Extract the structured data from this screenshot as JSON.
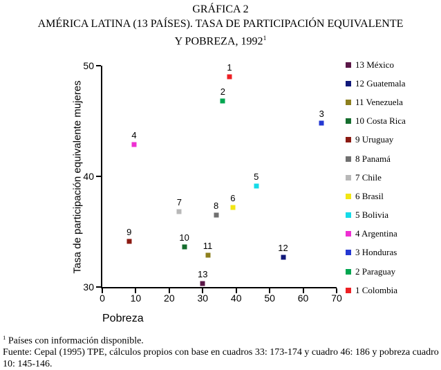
{
  "title": {
    "line1": "GRÁFICA 2",
    "line2": "AMÉRICA LATINA (13 PAÍSES). TASA DE PARTICIPACIÓN EQUIVALENTE",
    "line3": "Y POBREZA, 1992",
    "line3_sup": "1"
  },
  "chart_data": {
    "type": "scatter",
    "title": "GRÁFICA 2. AMÉRICA LATINA (13 PAÍSES). TASA DE PARTICIPACIÓN EQUIVALENTE Y POBREZA, 1992",
    "xlabel": "Pobreza",
    "ylabel": "Tasa de participación equivalente mujeres",
    "xlim": [
      0,
      70
    ],
    "ylim": [
      30,
      50
    ],
    "x_ticks": [
      0,
      10,
      20,
      30,
      40,
      50,
      60,
      70
    ],
    "y_ticks": [
      30,
      40,
      50
    ],
    "grid": false,
    "legend_position": "right",
    "points": [
      {
        "id": "13",
        "country": "México",
        "x": 30,
        "y": 30.3,
        "color": "#5a1747"
      },
      {
        "id": "12",
        "country": "Guatemala",
        "x": 54,
        "y": 32.7,
        "color": "#10187a"
      },
      {
        "id": "11",
        "country": "Venezuela",
        "x": 31.5,
        "y": 32.9,
        "color": "#8d7f1e"
      },
      {
        "id": "10",
        "country": "Costa Rica",
        "x": 24.5,
        "y": 33.6,
        "color": "#156d2d"
      },
      {
        "id": "9",
        "country": "Uruguay",
        "x": 8,
        "y": 34.1,
        "color": "#8b1a12"
      },
      {
        "id": "8",
        "country": "Panamá",
        "x": 34,
        "y": 36.5,
        "color": "#707070"
      },
      {
        "id": "7",
        "country": "Chile",
        "x": 23,
        "y": 36.8,
        "color": "#b8b8b8"
      },
      {
        "id": "6",
        "country": "Brasil",
        "x": 39,
        "y": 37.2,
        "color": "#f2e613"
      },
      {
        "id": "5",
        "country": "Bolivia",
        "x": 46,
        "y": 39.1,
        "color": "#15dbe8"
      },
      {
        "id": "4",
        "country": "Argentina",
        "x": 9.5,
        "y": 42.9,
        "color": "#ee2fd2"
      },
      {
        "id": "3",
        "country": "Honduras",
        "x": 65.5,
        "y": 44.8,
        "color": "#2438d2"
      },
      {
        "id": "2",
        "country": "Paraguay",
        "x": 36,
        "y": 46.8,
        "color": "#00a650"
      },
      {
        "id": "1",
        "country": "Colombia",
        "x": 38,
        "y": 49.0,
        "color": "#ed2024"
      }
    ]
  },
  "footer": {
    "note_sup": "1",
    "note_text": " Países con información disponible.",
    "source": "Fuente: Cepal (1995) TPE, cálculos propios con base en cuadros 33: 173-174 y cuadro 46: 186 y pobreza cuadro 10: 145-146."
  }
}
